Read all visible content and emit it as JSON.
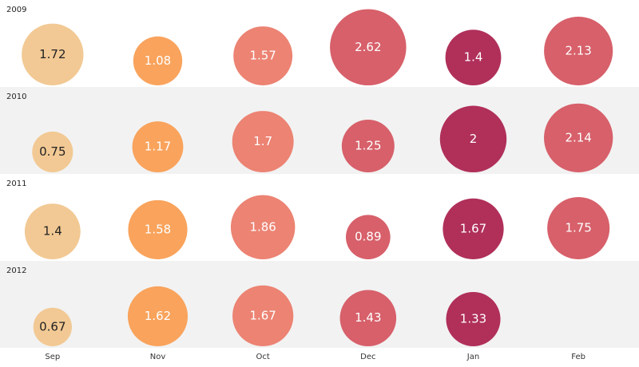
{
  "chart_data": {
    "type": "bubble",
    "categories": [
      "Sep",
      "Nov",
      "Oct",
      "Dec",
      "Jan",
      "Feb"
    ],
    "colors": [
      "#f2c994",
      "#f9a35c",
      "#ec8373",
      "#d7606a",
      "#b0305a",
      "#d7606a"
    ],
    "series": [
      {
        "name": "2009",
        "values": [
          1.72,
          1.08,
          1.57,
          2.62,
          1.4,
          2.13
        ]
      },
      {
        "name": "2010",
        "values": [
          0.75,
          1.17,
          1.7,
          1.25,
          2,
          2.14
        ]
      },
      {
        "name": "2011",
        "values": [
          1.4,
          1.58,
          1.86,
          0.89,
          1.67,
          1.75
        ]
      },
      {
        "name": "2012",
        "values": [
          0.67,
          1.62,
          1.67,
          1.43,
          1.33,
          null
        ]
      }
    ]
  }
}
